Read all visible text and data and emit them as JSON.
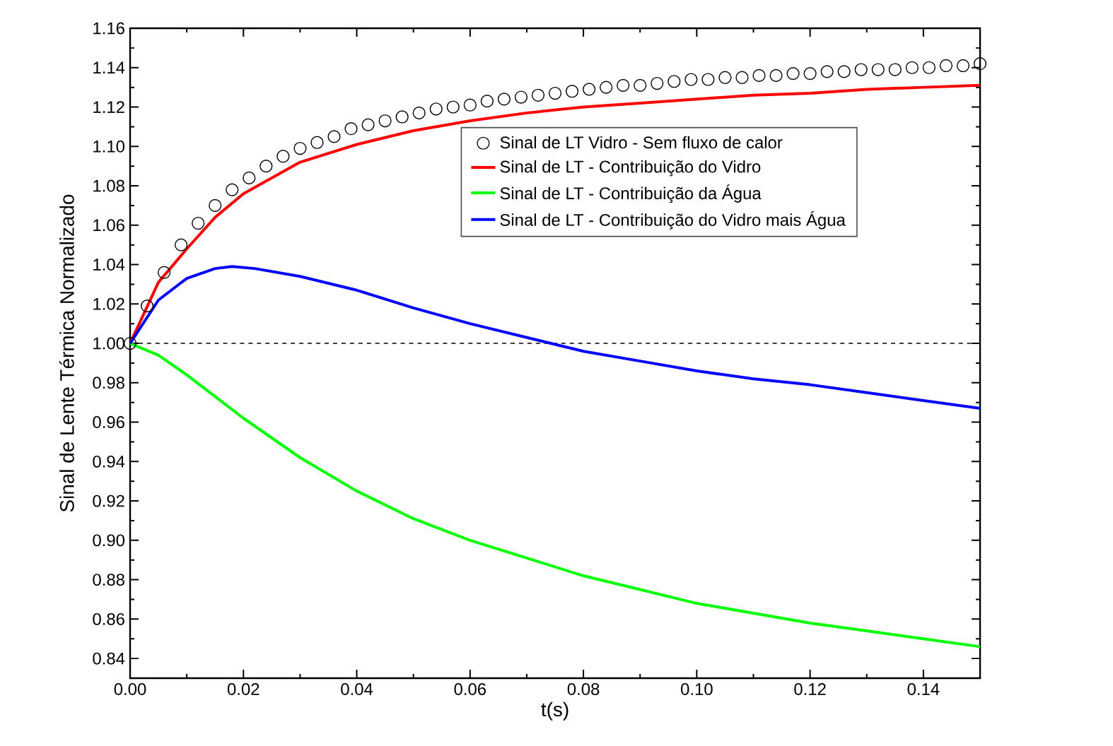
{
  "chart_data": {
    "type": "line",
    "xlabel": "t(s)",
    "ylabel": "Sinal de Lente Térmica Normalizado",
    "xlim": [
      0,
      0.15
    ],
    "ylim": [
      0.83,
      1.16
    ],
    "xticks": [
      {
        "value": 0,
        "label": "0.00"
      },
      {
        "value": 0.02,
        "label": "0.02"
      },
      {
        "value": 0.04,
        "label": "0.04"
      },
      {
        "value": 0.06,
        "label": "0.06"
      },
      {
        "value": 0.08,
        "label": "0.08"
      },
      {
        "value": 0.1,
        "label": "0.10"
      },
      {
        "value": 0.12,
        "label": "0.12"
      },
      {
        "value": 0.14,
        "label": "0.14"
      }
    ],
    "yticks": [
      {
        "value": 0.84,
        "label": "0.84"
      },
      {
        "value": 0.86,
        "label": "0.86"
      },
      {
        "value": 0.88,
        "label": "0.88"
      },
      {
        "value": 0.9,
        "label": "0.90"
      },
      {
        "value": 0.92,
        "label": "0.92"
      },
      {
        "value": 0.94,
        "label": "0.94"
      },
      {
        "value": 0.96,
        "label": "0.96"
      },
      {
        "value": 0.98,
        "label": "0.98"
      },
      {
        "value": 1.0,
        "label": "1.00"
      },
      {
        "value": 1.02,
        "label": "1.02"
      },
      {
        "value": 1.04,
        "label": "1.04"
      },
      {
        "value": 1.06,
        "label": "1.06"
      },
      {
        "value": 1.08,
        "label": "1.08"
      },
      {
        "value": 1.1,
        "label": "1.10"
      },
      {
        "value": 1.12,
        "label": "1.12"
      },
      {
        "value": 1.14,
        "label": "1.14"
      },
      {
        "value": 1.16,
        "label": "1.16"
      }
    ],
    "legend": "right",
    "grid": false,
    "ref_lines": [
      {
        "axis": "y",
        "value": 1.0,
        "color": "#000000",
        "line_style": "dashed"
      }
    ],
    "series": [
      {
        "name": "Sinal de LT Vidro - Sem fluxo de calor",
        "type": "scatter",
        "marker": "circle",
        "color": "#000000",
        "x": [
          0,
          0.003,
          0.006,
          0.009,
          0.012,
          0.015,
          0.018,
          0.021,
          0.024,
          0.027,
          0.03,
          0.033,
          0.036,
          0.039,
          0.042,
          0.045,
          0.048,
          0.051,
          0.054,
          0.057,
          0.06,
          0.063,
          0.066,
          0.069,
          0.072,
          0.075,
          0.078,
          0.081,
          0.084,
          0.087,
          0.09,
          0.093,
          0.096,
          0.099,
          0.102,
          0.105,
          0.108,
          0.111,
          0.114,
          0.117,
          0.12,
          0.123,
          0.126,
          0.129,
          0.132,
          0.135,
          0.138,
          0.141,
          0.144,
          0.147,
          0.15
        ],
        "values": [
          1.0,
          1.019,
          1.036,
          1.05,
          1.061,
          1.07,
          1.078,
          1.084,
          1.09,
          1.095,
          1.099,
          1.102,
          1.105,
          1.109,
          1.111,
          1.113,
          1.115,
          1.117,
          1.119,
          1.12,
          1.121,
          1.123,
          1.124,
          1.125,
          1.126,
          1.127,
          1.128,
          1.129,
          1.13,
          1.131,
          1.131,
          1.132,
          1.133,
          1.134,
          1.134,
          1.135,
          1.135,
          1.136,
          1.136,
          1.137,
          1.137,
          1.138,
          1.138,
          1.139,
          1.139,
          1.139,
          1.14,
          1.14,
          1.141,
          1.141,
          1.142
        ]
      },
      {
        "name": "Sinal de LT - Contribuição do Vidro",
        "line_style": "solid",
        "color": "#ff0000",
        "x": [
          0,
          0.005,
          0.01,
          0.015,
          0.02,
          0.03,
          0.04,
          0.05,
          0.06,
          0.07,
          0.08,
          0.09,
          0.1,
          0.11,
          0.12,
          0.13,
          0.14,
          0.15
        ],
        "values": [
          1.0,
          1.031,
          1.048,
          1.064,
          1.076,
          1.092,
          1.101,
          1.108,
          1.113,
          1.117,
          1.12,
          1.122,
          1.124,
          1.126,
          1.127,
          1.129,
          1.13,
          1.131
        ]
      },
      {
        "name": "Sinal de LT - Contribuição da Água",
        "line_style": "solid",
        "color": "#00ff00",
        "x": [
          0,
          0.005,
          0.01,
          0.015,
          0.02,
          0.03,
          0.04,
          0.05,
          0.06,
          0.07,
          0.08,
          0.09,
          0.1,
          0.11,
          0.12,
          0.13,
          0.14,
          0.15
        ],
        "values": [
          1.0,
          0.994,
          0.984,
          0.973,
          0.962,
          0.942,
          0.925,
          0.911,
          0.9,
          0.891,
          0.882,
          0.875,
          0.868,
          0.863,
          0.858,
          0.854,
          0.85,
          0.846
        ]
      },
      {
        "name": "Sinal de LT - Contribuição do Vidro mais  Água",
        "line_style": "solid",
        "color": "#0000ff",
        "x": [
          0,
          0.005,
          0.01,
          0.015,
          0.018,
          0.022,
          0.03,
          0.04,
          0.05,
          0.06,
          0.07,
          0.08,
          0.09,
          0.1,
          0.11,
          0.12,
          0.13,
          0.14,
          0.15
        ],
        "values": [
          1.0,
          1.022,
          1.033,
          1.038,
          1.039,
          1.038,
          1.034,
          1.027,
          1.018,
          1.01,
          1.003,
          0.996,
          0.991,
          0.986,
          0.982,
          0.979,
          0.975,
          0.971,
          0.967
        ]
      }
    ]
  }
}
